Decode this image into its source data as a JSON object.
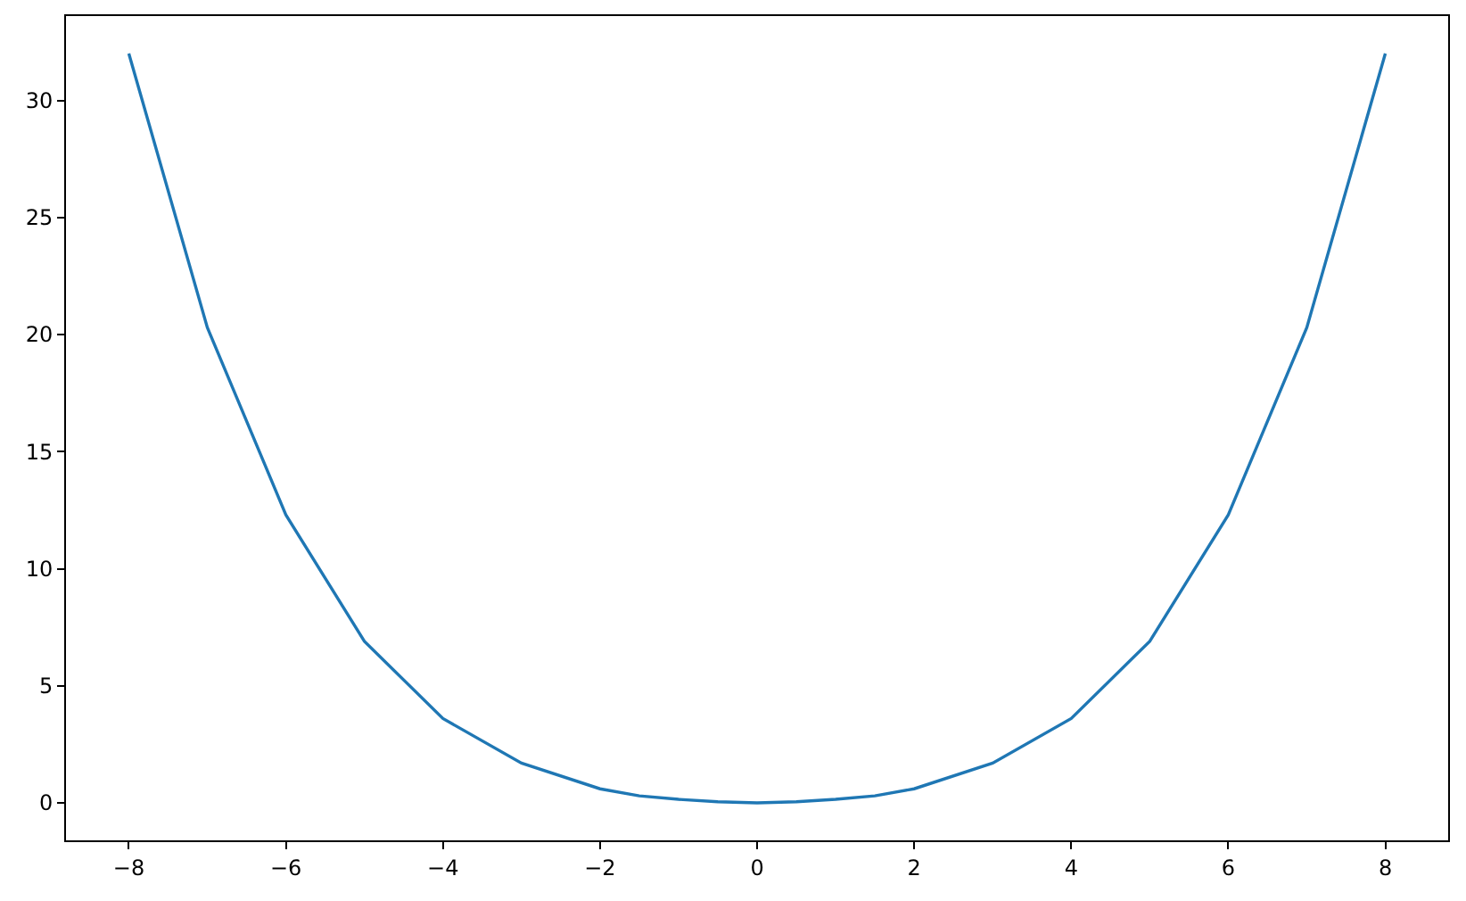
{
  "chart_data": {
    "type": "line",
    "x": [
      -8,
      -7,
      -6,
      -5,
      -4,
      -3,
      -2,
      -1.5,
      -1,
      -0.5,
      0,
      0.5,
      1,
      1.5,
      2,
      3,
      4,
      5,
      6,
      7,
      8
    ],
    "values": [
      32.0,
      20.3,
      12.3,
      6.9,
      3.6,
      1.7,
      0.6,
      0.3,
      0.15,
      0.05,
      0,
      0.05,
      0.15,
      0.3,
      0.6,
      1.7,
      3.6,
      6.9,
      12.3,
      20.3,
      32.0
    ],
    "color": "#1f77b4",
    "xlim": [
      -8.8,
      8.8
    ],
    "ylim": [
      -1.6,
      33.6
    ],
    "xticks": [
      -8,
      -6,
      -4,
      -2,
      0,
      2,
      4,
      6,
      8
    ],
    "yticks": [
      0,
      5,
      10,
      15,
      20,
      25,
      30
    ]
  }
}
